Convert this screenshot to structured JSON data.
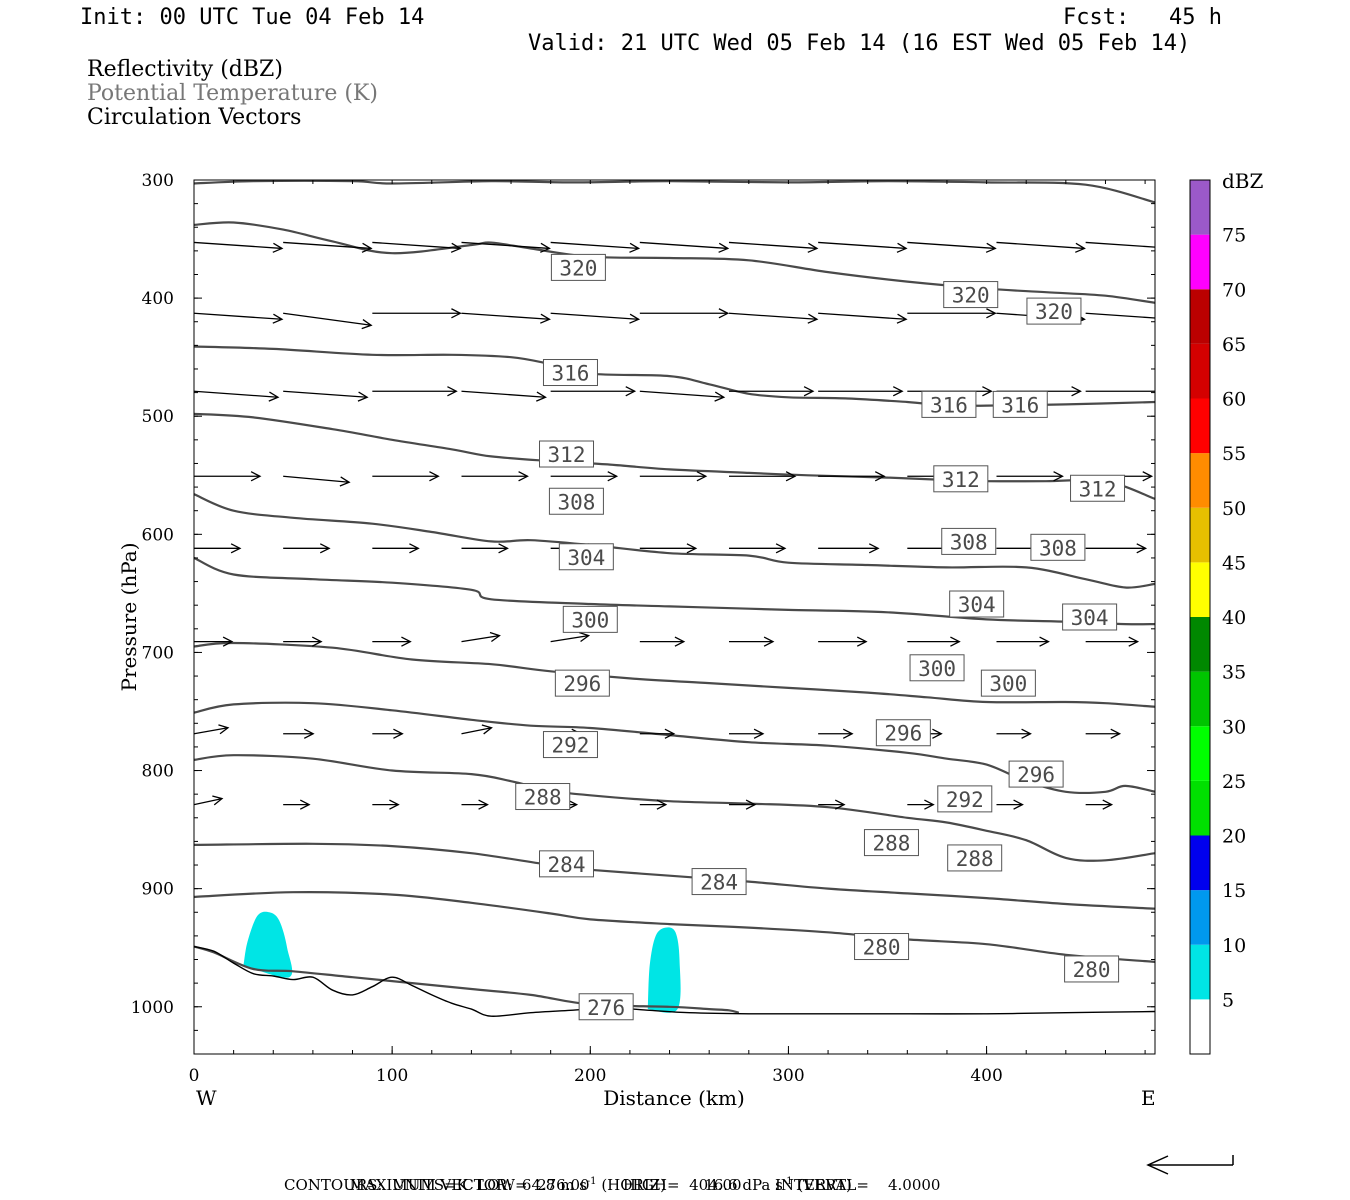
{
  "header": {
    "init": "Init: 00 UTC Tue 04 Feb 14",
    "fcst": "Fcst:   45 h",
    "valid": "Valid: 21 UTC Wed 05 Feb 14 (16 EST Wed 05 Feb 14)"
  },
  "legend": {
    "reflectivity": "Reflectivity (dBZ)",
    "theta": "Potential Temperature (K)",
    "circulation": "Circulation Vectors"
  },
  "colors": {
    "theta_line": "#4a4a4a",
    "theta_label_text": "#4a4a4a",
    "refl_shade": "#00e5e5"
  },
  "footer": {
    "max_vector_prefix": "MAXIMUM VECTOR:  64.8 m s",
    "max_vector_horiz": "(HORIZ)",
    "max_vector_vert_prefix": "16.6 dPa s",
    "max_vector_vert": "(VERT)",
    "superscript": "-1",
    "contours": "CONTOURS:  UNITS=K  LOW=  276.00       HIGH=  404.00       INTERVAL=    4.0000"
  },
  "chart_data": {
    "type": "cross-section",
    "xlabel": "Distance (km)",
    "ylabel": "Pressure (hPa)",
    "xlim": [
      0,
      485
    ],
    "ylim": [
      1040,
      300
    ],
    "x_ticks": [
      0,
      100,
      200,
      300,
      400
    ],
    "y_ticks": [
      300,
      400,
      500,
      600,
      700,
      800,
      900,
      1000
    ],
    "x_end_labels": {
      "left": "W",
      "right": "E"
    },
    "colorbar": {
      "units": "dBZ",
      "tick_labels": [
        "5",
        "10",
        "15",
        "20",
        "25",
        "30",
        "35",
        "40",
        "45",
        "50",
        "55",
        "60",
        "65",
        "70",
        "75"
      ],
      "colors": [
        "#00e5e5",
        "#0099ee",
        "#0000ee",
        "#00e000",
        "#00ff00",
        "#00c400",
        "#008800",
        "#ffff00",
        "#e6c000",
        "#ff8c00",
        "#ff0000",
        "#d40000",
        "#bb0000",
        "#ff00ff",
        "#9b59c9"
      ]
    },
    "theta_contours": [
      {
        "value": 320,
        "x": [
          0,
          30,
          80,
          100,
          150,
          190,
          240,
          300,
          350,
          400,
          450,
          485
        ],
        "p": [
          303,
          301,
          301,
          303,
          301,
          302,
          301,
          302,
          301,
          302,
          304,
          319
        ]
      },
      {
        "value": 320,
        "x": [
          0,
          20,
          45,
          70,
          100,
          140,
          150,
          170,
          200,
          240,
          280,
          320,
          360,
          400,
          430,
          460,
          485
        ],
        "p": [
          338,
          336,
          342,
          352,
          362,
          355,
          353,
          358,
          365,
          366,
          368,
          378,
          386,
          392,
          395,
          398,
          404
        ]
      },
      {
        "value": 316,
        "x": [
          0,
          40,
          90,
          130,
          160,
          180,
          200,
          240,
          260,
          280,
          300,
          330,
          360,
          380,
          400,
          440,
          485
        ],
        "p": [
          441,
          443,
          448,
          448,
          450,
          456,
          464,
          466,
          473,
          481,
          484,
          485,
          488,
          491,
          491,
          490,
          488
        ]
      },
      {
        "value": 312,
        "x": [
          0,
          30,
          70,
          100,
          130,
          150,
          180,
          210,
          240,
          280,
          310,
          350,
          380,
          400,
          430,
          460,
          485
        ],
        "p": [
          498,
          501,
          511,
          520,
          528,
          534,
          538,
          541,
          545,
          548,
          550,
          552,
          554,
          555,
          555,
          555,
          570
        ]
      },
      {
        "value": 308,
        "x": [
          0,
          20,
          50,
          90,
          120,
          150,
          170,
          200,
          240,
          280,
          300,
          340,
          380,
          420,
          450,
          470,
          485
        ],
        "p": [
          566,
          580,
          586,
          591,
          598,
          606,
          605,
          609,
          616,
          618,
          624,
          626,
          628,
          628,
          638,
          645,
          642
        ]
      },
      {
        "value": 304,
        "x": [
          0,
          20,
          60,
          100,
          140,
          150,
          200,
          240,
          280,
          300,
          350,
          400,
          440,
          470,
          485
        ],
        "p": [
          620,
          634,
          638,
          641,
          647,
          655,
          659,
          661,
          663,
          664,
          666,
          672,
          674,
          676,
          676
        ]
      },
      {
        "value": 300,
        "x": [
          0,
          20,
          70,
          110,
          150,
          180,
          220,
          260,
          300,
          340,
          370,
          400,
          440,
          460,
          485
        ],
        "p": [
          695,
          692,
          696,
          706,
          710,
          716,
          722,
          726,
          730,
          734,
          738,
          742,
          742,
          743,
          746
        ]
      },
      {
        "value": 296,
        "x": [
          0,
          20,
          60,
          100,
          140,
          170,
          200,
          240,
          280,
          320,
          360,
          380,
          400,
          420,
          440,
          460,
          470,
          485
        ],
        "p": [
          751,
          744,
          743,
          749,
          757,
          762,
          764,
          770,
          776,
          779,
          785,
          790,
          795,
          809,
          818,
          818,
          813,
          818
        ]
      },
      {
        "value": 292,
        "x": [
          0,
          20,
          60,
          100,
          140,
          160,
          180,
          200,
          240,
          280,
          320,
          360,
          380,
          400,
          420,
          440,
          460,
          485
        ],
        "p": [
          791,
          787,
          790,
          800,
          803,
          809,
          817,
          821,
          826,
          828,
          831,
          840,
          844,
          851,
          859,
          874,
          876,
          870
        ]
      },
      {
        "value": 288,
        "x": [
          0,
          60,
          100,
          140,
          180,
          200,
          240,
          280,
          320,
          360,
          400,
          440,
          485
        ],
        "p": [
          863,
          862,
          864,
          870,
          880,
          884,
          889,
          894,
          900,
          904,
          908,
          913,
          917
        ]
      },
      {
        "value": 284,
        "x": [
          0,
          50,
          100,
          140,
          180,
          200,
          240,
          280,
          320,
          360,
          400,
          440,
          485
        ],
        "p": [
          907,
          903,
          905,
          912,
          921,
          926,
          930,
          933,
          937,
          943,
          947,
          956,
          962
        ]
      },
      {
        "value": 276,
        "x": [
          0,
          10,
          30,
          50,
          80,
          110,
          140,
          170,
          200,
          240,
          260,
          270,
          275
        ],
        "p": [
          949,
          954,
          968,
          970,
          975,
          980,
          985,
          990,
          998,
          1000,
          1002,
          1003,
          1005
        ]
      }
    ],
    "contour_labels": [
      {
        "value": "320",
        "x": 194,
        "p": 374
      },
      {
        "value": "320",
        "x": 392,
        "p": 397
      },
      {
        "value": "320",
        "x": 434,
        "p": 411
      },
      {
        "value": "316",
        "x": 190,
        "p": 463
      },
      {
        "value": "316",
        "x": 381,
        "p": 490
      },
      {
        "value": "316",
        "x": 417,
        "p": 490
      },
      {
        "value": "312",
        "x": 188,
        "p": 532
      },
      {
        "value": "312",
        "x": 387,
        "p": 553
      },
      {
        "value": "312",
        "x": 456,
        "p": 561
      },
      {
        "value": "308",
        "x": 193,
        "p": 572
      },
      {
        "value": "308",
        "x": 391,
        "p": 606
      },
      {
        "value": "308",
        "x": 436,
        "p": 611
      },
      {
        "value": "304",
        "x": 198,
        "p": 619
      },
      {
        "value": "304",
        "x": 395,
        "p": 659
      },
      {
        "value": "304",
        "x": 452,
        "p": 670
      },
      {
        "value": "300",
        "x": 200,
        "p": 672
      },
      {
        "value": "300",
        "x": 375,
        "p": 713
      },
      {
        "value": "300",
        "x": 411,
        "p": 726
      },
      {
        "value": "296",
        "x": 196,
        "p": 726
      },
      {
        "value": "296",
        "x": 358,
        "p": 768
      },
      {
        "value": "296",
        "x": 425,
        "p": 803
      },
      {
        "value": "292",
        "x": 190,
        "p": 778
      },
      {
        "value": "292",
        "x": 389,
        "p": 824
      },
      {
        "value": "288",
        "x": 176,
        "p": 822
      },
      {
        "value": "288",
        "x": 352,
        "p": 861
      },
      {
        "value": "288",
        "x": 394,
        "p": 874
      },
      {
        "value": "284",
        "x": 188,
        "p": 879
      },
      {
        "value": "284",
        "x": 265,
        "p": 894
      },
      {
        "value": "280",
        "x": 347,
        "p": 949
      },
      {
        "value": "280",
        "x": 453,
        "p": 968
      },
      {
        "value": "276",
        "x": 208,
        "p": 1000
      }
    ],
    "surface": {
      "x": [
        0,
        10,
        20,
        30,
        40,
        50,
        60,
        70,
        80,
        90,
        100,
        110,
        120,
        130,
        140,
        150,
        170,
        190,
        210,
        230,
        250,
        280,
        320,
        360,
        400,
        440,
        485
      ],
      "p": [
        949,
        953,
        963,
        972,
        974,
        977,
        975,
        986,
        990,
        983,
        975,
        982,
        990,
        997,
        1002,
        1008,
        1005,
        1003,
        1001,
        1003,
        1005,
        1006,
        1006,
        1006,
        1006,
        1005,
        1004
      ]
    },
    "reflectivity_cells": [
      {
        "dbz": 5,
        "x": [
          25,
          27,
          32,
          38,
          43,
          47,
          48,
          25
        ],
        "p": [
          965,
          945,
          923,
          920,
          927,
          950,
          975,
          965
        ]
      },
      {
        "dbz": 5,
        "x": [
          229,
          230,
          233,
          238,
          243,
          245,
          244,
          229
        ],
        "p": [
          1002,
          965,
          940,
          933,
          937,
          960,
          1002,
          1002
        ]
      }
    ],
    "vectors": [
      {
        "p": 352,
        "x": [
          0,
          45,
          90,
          135,
          180,
          225,
          270,
          315,
          360,
          405,
          450
        ],
        "u": [
          44,
          44,
          44,
          44,
          44,
          44,
          44,
          44,
          44,
          44,
          44
        ],
        "v": [
          -1,
          -1,
          -1,
          -1,
          -1,
          -1,
          -1,
          -1,
          -1,
          -1,
          -1
        ]
      },
      {
        "p": 412,
        "x": [
          0,
          45,
          90,
          135,
          180,
          225,
          270,
          315,
          360,
          405,
          450
        ],
        "u": [
          44,
          44,
          44,
          44,
          44,
          44,
          44,
          44,
          44,
          44,
          44
        ],
        "v": [
          -1,
          -2,
          0,
          -1,
          -1,
          0,
          -1,
          -1,
          0,
          -1,
          -1
        ]
      },
      {
        "p": 478,
        "x": [
          0,
          45,
          90,
          135,
          180,
          225,
          270,
          315,
          360,
          405,
          450
        ],
        "u": [
          42,
          42,
          42,
          42,
          42,
          42,
          42,
          42,
          42,
          42,
          42
        ],
        "v": [
          -1,
          -1,
          0,
          -1,
          0,
          -1,
          0,
          0,
          0,
          0,
          0
        ]
      },
      {
        "p": 550,
        "x": [
          0,
          45,
          90,
          135,
          180,
          225,
          270,
          315,
          360,
          405,
          450
        ],
        "u": [
          33,
          33,
          33,
          33,
          33,
          33,
          33,
          33,
          33,
          33,
          33
        ],
        "v": [
          0,
          -1,
          0,
          0,
          0,
          0,
          0,
          0,
          0,
          0,
          0
        ]
      },
      {
        "p": 611,
        "x": [
          0,
          45,
          90,
          135,
          180,
          225,
          270,
          315,
          360,
          405,
          450
        ],
        "u": [
          23,
          23,
          23,
          23,
          23,
          28,
          28,
          30,
          30,
          30,
          30
        ],
        "v": [
          0,
          0,
          0,
          0,
          0,
          0,
          0,
          0,
          0,
          0,
          0
        ]
      },
      {
        "p": 690,
        "x": [
          0,
          45,
          90,
          135,
          180,
          225,
          270,
          315,
          360,
          405,
          450
        ],
        "u": [
          19,
          19,
          19,
          19,
          19,
          22,
          22,
          24,
          26,
          26,
          26
        ],
        "v": [
          0,
          0,
          0,
          1,
          1,
          0,
          0,
          0,
          0,
          0,
          0
        ]
      },
      {
        "p": 768,
        "x": [
          0,
          45,
          90,
          135,
          180,
          225,
          270,
          315,
          360,
          405,
          450
        ],
        "u": [
          17,
          15,
          15,
          15,
          15,
          17,
          17,
          17,
          17,
          17,
          17
        ],
        "v": [
          1,
          0,
          0,
          1,
          0,
          0,
          0,
          0,
          0,
          0,
          0
        ]
      },
      {
        "p": 828,
        "x": [
          0,
          45,
          90,
          135,
          180,
          225,
          270,
          315,
          360,
          405,
          450
        ],
        "u": [
          14,
          13,
          13,
          13,
          13,
          13,
          13,
          13,
          13,
          13,
          13
        ],
        "v": [
          1,
          0,
          0,
          0,
          0,
          0,
          0,
          0,
          0,
          0,
          0
        ]
      }
    ]
  }
}
